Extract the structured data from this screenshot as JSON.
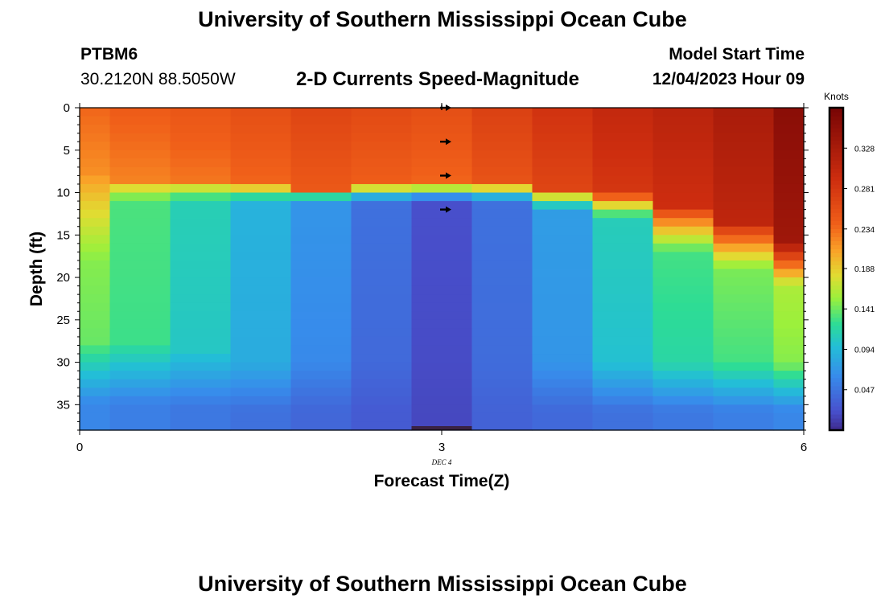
{
  "header": {
    "title": "University of Southern Mississippi Ocean Cube",
    "station_id": "PTBM6",
    "coordinates": "30.2120N  88.5050W",
    "subtitle": "2-D Currents Speed-Magnitude",
    "model_start_label": "Model Start Time",
    "model_start_value": "12/04/2023 Hour 09"
  },
  "footer": {
    "title": "University of Southern Mississippi Ocean Cube"
  },
  "chart_data": {
    "type": "heatmap",
    "title": "2-D Currents Speed-Magnitude",
    "xlabel": "Forecast Time(Z)",
    "ylabel": "Depth (ft)",
    "x_ticks": [
      "0",
      "3",
      "6"
    ],
    "x_sublabel": "DEC 4",
    "xlim": [
      0,
      6
    ],
    "y_ticks": [
      "0",
      "5",
      "10",
      "15",
      "20",
      "25",
      "30",
      "35"
    ],
    "ylim": [
      0,
      38
    ],
    "colorbar": {
      "label": "Knots",
      "ticks": [
        "0.047",
        "0.094",
        "0.141",
        "0.188",
        "0.234",
        "0.281",
        "0.328"
      ],
      "range": [
        0,
        0.375
      ],
      "tick_values": [
        0.047,
        0.094,
        0.141,
        0.188,
        0.234,
        0.281,
        0.328
      ]
    },
    "columns": [
      {
        "t0": 0.0,
        "t1": 0.25,
        "surface": 0.225,
        "top_end": 8.0,
        "mid": 0.148,
        "trans_end": 18,
        "low": 0.14,
        "bottom_start": 27.5,
        "bottom": 0.06
      },
      {
        "t0": 0.25,
        "t1": 0.75,
        "surface": 0.232,
        "top_end": 8.5,
        "mid": 0.132,
        "trans_end": 11,
        "low": 0.128,
        "bottom_start": 27.5,
        "bottom": 0.055
      },
      {
        "t0": 0.75,
        "t1": 1.25,
        "surface": 0.238,
        "top_end": 8.5,
        "mid": 0.112,
        "trans_end": 11,
        "low": 0.105,
        "bottom_start": 28.5,
        "bottom": 0.05
      },
      {
        "t0": 1.25,
        "t1": 1.75,
        "surface": 0.245,
        "top_end": 9.0,
        "mid": 0.09,
        "trans_end": 11,
        "low": 0.085,
        "bottom_start": 30,
        "bottom": 0.045
      },
      {
        "t0": 1.75,
        "t1": 2.25,
        "surface": 0.255,
        "top_end": 9.5,
        "mid": 0.07,
        "trans_end": 11,
        "low": 0.062,
        "bottom_start": 30,
        "bottom": 0.038
      },
      {
        "t0": 2.25,
        "t1": 2.75,
        "surface": 0.25,
        "top_end": 9.0,
        "mid": 0.045,
        "trans_end": 11,
        "low": 0.04,
        "bottom_start": 30,
        "bottom": 0.03
      },
      {
        "t0": 2.75,
        "t1": 3.25,
        "surface": 0.245,
        "top_end": 9.0,
        "mid": 0.022,
        "trans_end": 11,
        "low": 0.02,
        "bottom_start": 30,
        "bottom": 0.018
      },
      {
        "t0": 3.25,
        "t1": 3.75,
        "surface": 0.26,
        "top_end": 9.0,
        "mid": 0.045,
        "trans_end": 11,
        "low": 0.042,
        "bottom_start": 30,
        "bottom": 0.035
      },
      {
        "t0": 3.75,
        "t1": 4.25,
        "surface": 0.275,
        "top_end": 9.5,
        "mid": 0.075,
        "trans_end": 12,
        "low": 0.07,
        "bottom_start": 30,
        "bottom": 0.04
      },
      {
        "t0": 4.25,
        "t1": 4.75,
        "surface": 0.29,
        "top_end": 10.0,
        "mid": 0.11,
        "trans_end": 13,
        "low": 0.1,
        "bottom_start": 30,
        "bottom": 0.045
      },
      {
        "t0": 4.75,
        "t1": 5.25,
        "surface": 0.3,
        "top_end": 11.5,
        "mid": 0.13,
        "trans_end": 17,
        "low": 0.118,
        "bottom_start": 30,
        "bottom": 0.05
      },
      {
        "t0": 5.25,
        "t1": 5.75,
        "surface": 0.315,
        "top_end": 13.5,
        "mid": 0.145,
        "trans_end": 19,
        "low": 0.13,
        "bottom_start": 30,
        "bottom": 0.055
      },
      {
        "t0": 5.75,
        "t1": 6.0,
        "surface": 0.345,
        "top_end": 16.0,
        "mid": 0.16,
        "trans_end": 21,
        "low": 0.148,
        "bottom_start": 30,
        "bottom": 0.06
      }
    ],
    "vectors": [
      {
        "time": 3,
        "depth": 0,
        "direction": "east"
      },
      {
        "time": 3,
        "depth": 4,
        "direction": "east"
      },
      {
        "time": 3,
        "depth": 8,
        "direction": "east"
      },
      {
        "time": 3,
        "depth": 12,
        "direction": "east"
      }
    ]
  }
}
